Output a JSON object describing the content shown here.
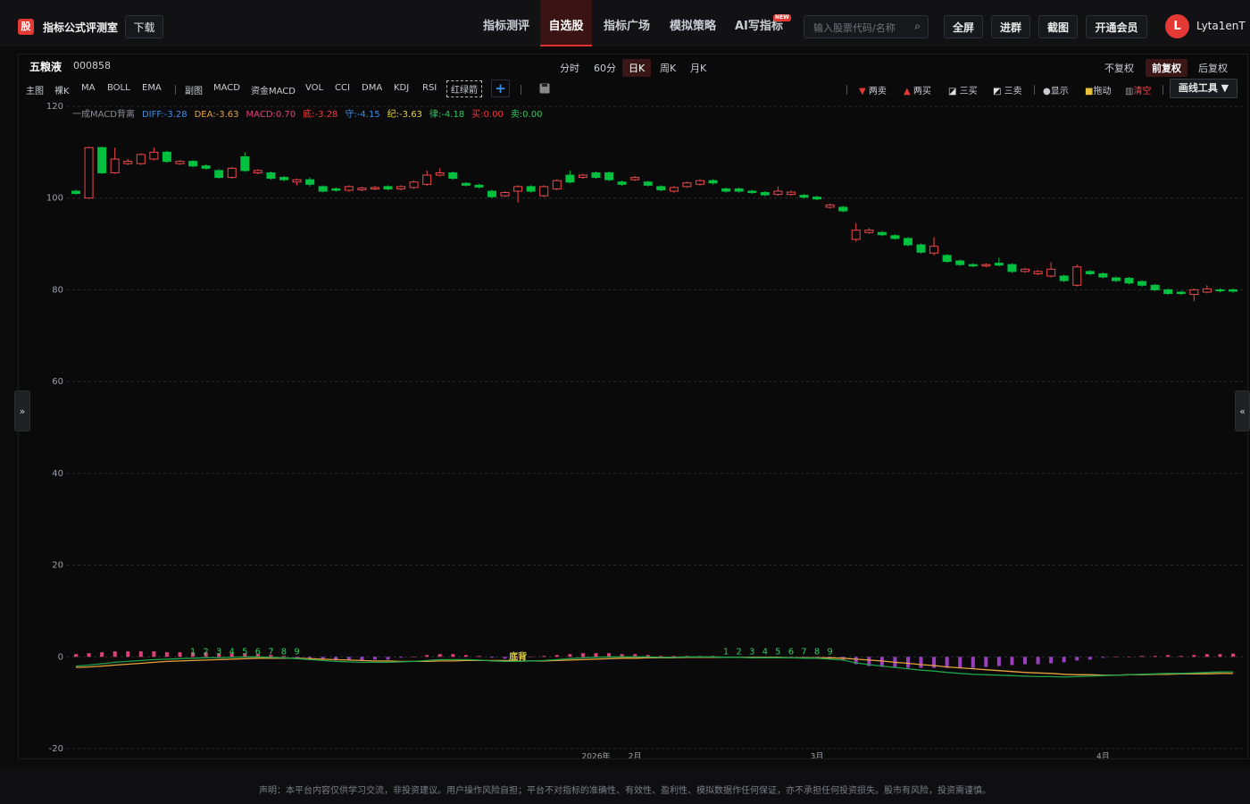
{
  "header": {
    "logo": "股",
    "app_name": "指标公式评测室",
    "download": "下载",
    "nav": [
      "指标测评",
      "自选股",
      "指标广场",
      "模拟策略",
      "AI写指标"
    ],
    "nav_active": 1,
    "new_badge": "NEW",
    "search_placeholder": "输入股票代码/名称",
    "search_icon": "⌕",
    "buttons": [
      "全屏",
      "进群",
      "截图",
      "开通会员"
    ],
    "avatar": "L",
    "username": "Lyta1enT"
  },
  "stock": {
    "name": "五粮液",
    "code": "000858"
  },
  "periods": [
    "分时",
    "60分",
    "日K",
    "周K",
    "月K"
  ],
  "period_active": 2,
  "adjust": [
    "不复权",
    "前复权",
    "后复权"
  ],
  "adjust_active": 1,
  "indicators": [
    "主图",
    "裸K",
    "MA",
    "BOLL",
    "EMA",
    "副图",
    "MACD",
    "资金MACD",
    "VOL",
    "CCI",
    "DMA",
    "KDJ",
    "RSI",
    "红绿箭"
  ],
  "add_button": "+",
  "tools": [
    "两卖",
    "两买",
    "三买",
    "三卖",
    "显示",
    "拖动",
    "清空"
  ],
  "draw_tools": "画线工具 ▼",
  "left_toggle": "»",
  "right_toggle": "«",
  "footer": "声明：本平台内容仅供学习交流，非投资建议。用户操作风险自担；平台不对指标的准确性、有效性、盈利性、模拟数据作任何保证，亦不承担任何投资损失。股市有风险，投资需谨慎。",
  "chart_data": {
    "type": "candlestick",
    "legend": [
      {
        "text": "一成MACD背离",
        "color": "#8a8f98"
      },
      {
        "text": "DIFF:-3.28",
        "color": "#3a8ee6"
      },
      {
        "text": "DEA:-3.63",
        "color": "#e6a23c"
      },
      {
        "text": "MACD:0.70",
        "color": "#e0407a"
      },
      {
        "text": "底:-3.28",
        "color": "#f03a3a"
      },
      {
        "text": "守:-4.15",
        "color": "#3a8ee6"
      },
      {
        "text": "纪:-3.63",
        "color": "#e6d23c"
      },
      {
        "text": "律:-4.18",
        "color": "#2ec95c"
      },
      {
        "text": "买:0.00",
        "color": "#f03a3a"
      },
      {
        "text": "卖:0.00",
        "color": "#2ec95c"
      }
    ],
    "up_color": "#f04848",
    "down_color": "#00c040",
    "ylim": [
      -20,
      120
    ],
    "yticks": [
      -20,
      0,
      20,
      40,
      60,
      80,
      100,
      120
    ],
    "grid": true,
    "open": [
      101.5,
      100,
      111,
      105.5,
      107.5,
      107.5,
      108.5,
      110,
      107.5,
      108,
      107,
      106,
      104.5,
      109,
      105.5,
      105.5,
      104.5,
      103.5,
      104,
      102.5,
      102,
      101.7,
      101.8,
      102,
      102.5,
      102,
      102.3,
      103,
      105,
      105.5,
      103.2,
      102.8,
      101.5,
      100.5,
      101.5,
      102.5,
      100.5,
      102,
      105,
      104.5,
      105.5,
      105.5,
      103.5,
      104,
      103.5,
      102.5,
      101.5,
      102.5,
      103,
      103.8,
      102,
      102,
      101.5,
      101.2,
      100.8,
      100.8,
      100.6,
      100.2,
      98,
      98,
      91,
      92.5,
      92.5,
      91.8,
      91.2,
      89.8,
      88,
      87.5,
      86.3,
      85.5,
      85.2,
      85.8,
      85.5,
      84,
      83.5,
      83,
      83,
      81,
      84,
      83.5,
      82.6,
      82.5,
      81.8,
      81,
      80,
      79.5,
      79,
      79.5,
      80,
      80
    ],
    "high": [
      101.8,
      111.2,
      111.2,
      111,
      108.5,
      109.8,
      111,
      110.3,
      108.3,
      108.3,
      107.3,
      106.3,
      106.8,
      110,
      106.3,
      105.8,
      104.8,
      104.3,
      104.5,
      102.8,
      102.3,
      102.8,
      102.5,
      102.6,
      102.8,
      102.8,
      103.8,
      106,
      106.5,
      105.8,
      103.5,
      103.1,
      101.8,
      101.5,
      102.8,
      102.8,
      102.8,
      104.1,
      106,
      105.3,
      105.8,
      105.8,
      103.8,
      104.8,
      103.8,
      102.8,
      102.6,
      103.6,
      104.1,
      104.1,
      102.3,
      102.3,
      101.8,
      101.5,
      102.5,
      101.6,
      100.9,
      100.5,
      98.8,
      98.3,
      94.5,
      93.5,
      92.8,
      92.1,
      91.5,
      90.1,
      91.5,
      87.8,
      86.6,
      85.8,
      85.8,
      87,
      85.8,
      84.8,
      84.3,
      86,
      83.3,
      85.5,
      84.3,
      83.8,
      82.9,
      82.8,
      82.1,
      81.3,
      80.3,
      79.8,
      80.3,
      81,
      80.3,
      80.3
    ],
    "low": [
      100.7,
      99.8,
      105.3,
      105.3,
      107.2,
      107.2,
      108.2,
      107.7,
      107.2,
      106.7,
      106.2,
      104.2,
      104.2,
      105.7,
      105.2,
      104,
      103.7,
      102.8,
      102.5,
      101.2,
      101.4,
      101.4,
      101.5,
      101.7,
      101.7,
      101.7,
      102,
      102.7,
      104.7,
      104,
      102.5,
      102.1,
      100,
      100.2,
      99,
      101.2,
      100.2,
      101.7,
      103.2,
      104.2,
      104.2,
      103.7,
      102.7,
      103.7,
      102.5,
      101.5,
      101.2,
      102.2,
      102.7,
      103,
      101.2,
      101.2,
      100.9,
      100.4,
      100.5,
      100.5,
      99.9,
      99.5,
      97.7,
      96.9,
      90.5,
      92.2,
      91.7,
      90.9,
      89.5,
      87.9,
      87.5,
      85.9,
      85.2,
      84.9,
      84.9,
      85.1,
      83.7,
      83.7,
      83.2,
      82.7,
      81.7,
      80.7,
      83.2,
      82.5,
      81.7,
      81.2,
      80.7,
      79.7,
      78.9,
      78.9,
      77.5,
      79.2,
      79.5,
      79.4
    ],
    "close": [
      101,
      111,
      105.5,
      108.5,
      108,
      109.5,
      110,
      108,
      108,
      107,
      106.5,
      104.5,
      106.5,
      106,
      106,
      104.3,
      104,
      104,
      103,
      101.5,
      101.7,
      102.5,
      102.2,
      102.3,
      102,
      102.5,
      103.5,
      105,
      105.5,
      104.3,
      102.8,
      102.4,
      100.3,
      101.2,
      102.5,
      101.5,
      102.5,
      103.8,
      103.5,
      105,
      104.5,
      104,
      103,
      104.5,
      102.8,
      101.8,
      102.3,
      103.3,
      103.8,
      103.3,
      101.5,
      101.5,
      101.2,
      100.7,
      101.5,
      101.3,
      100.2,
      99.8,
      98.5,
      97.2,
      93,
      93,
      92,
      91.2,
      89.8,
      88.2,
      89.5,
      86.2,
      85.5,
      85.2,
      85.5,
      85.4,
      84,
      84.5,
      84,
      84.5,
      82,
      85,
      83.5,
      82.8,
      82,
      81.5,
      81,
      80,
      79.2,
      79.2,
      80,
      80.2,
      79.8,
      79.7
    ],
    "diff": [
      -2.0,
      -1.8,
      -1.5,
      -1.2,
      -1.0,
      -0.8,
      -0.6,
      -0.5,
      -0.4,
      -0.3,
      -0.2,
      -0.2,
      -0.1,
      0,
      0,
      -0.1,
      -0.2,
      -0.4,
      -0.6,
      -0.8,
      -1.0,
      -1.1,
      -1.2,
      -1.2,
      -1.2,
      -1.1,
      -1.0,
      -0.8,
      -0.6,
      -0.6,
      -0.6,
      -0.7,
      -0.9,
      -1.0,
      -1.0,
      -0.9,
      -0.8,
      -0.6,
      -0.4,
      -0.2,
      -0.1,
      0,
      0,
      0,
      0,
      -0.1,
      -0.1,
      0,
      0,
      0,
      -0.1,
      -0.1,
      -0.2,
      -0.2,
      -0.2,
      -0.2,
      -0.3,
      -0.3,
      -0.5,
      -0.7,
      -1.3,
      -1.7,
      -2.0,
      -2.3,
      -2.6,
      -2.9,
      -3.1,
      -3.4,
      -3.6,
      -3.8,
      -3.9,
      -4.0,
      -4.1,
      -4.2,
      -4.3,
      -4.3,
      -4.4,
      -4.3,
      -4.2,
      -4.1,
      -4.0,
      -3.9,
      -3.8,
      -3.7,
      -3.6,
      -3.6,
      -3.5,
      -3.4,
      -3.3,
      -3.28
    ],
    "dea": [
      -2.3,
      -2.2,
      -2.0,
      -1.8,
      -1.6,
      -1.4,
      -1.2,
      -1.0,
      -0.9,
      -0.8,
      -0.7,
      -0.6,
      -0.5,
      -0.4,
      -0.3,
      -0.3,
      -0.3,
      -0.3,
      -0.4,
      -0.5,
      -0.6,
      -0.7,
      -0.8,
      -0.9,
      -0.9,
      -1.0,
      -1.0,
      -1.0,
      -0.9,
      -0.9,
      -0.8,
      -0.8,
      -0.8,
      -0.8,
      -0.9,
      -0.9,
      -0.9,
      -0.8,
      -0.7,
      -0.6,
      -0.5,
      -0.4,
      -0.3,
      -0.3,
      -0.2,
      -0.2,
      -0.2,
      -0.1,
      -0.1,
      -0.1,
      -0.1,
      -0.1,
      -0.1,
      -0.1,
      -0.1,
      -0.2,
      -0.2,
      -0.2,
      -0.2,
      -0.3,
      -0.5,
      -0.7,
      -0.9,
      -1.2,
      -1.4,
      -1.7,
      -1.9,
      -2.2,
      -2.4,
      -2.6,
      -2.8,
      -3.0,
      -3.2,
      -3.4,
      -3.5,
      -3.6,
      -3.8,
      -3.9,
      -3.9,
      -4.0,
      -4.0,
      -3.9,
      -3.9,
      -3.8,
      -3.8,
      -3.7,
      -3.7,
      -3.7,
      -3.6,
      -3.63
    ],
    "macd": [
      0.6,
      0.8,
      1.0,
      1.2,
      1.2,
      1.2,
      1.2,
      1.0,
      1.0,
      1.0,
      1.0,
      0.8,
      0.8,
      0.8,
      0.6,
      0.4,
      0.2,
      -0.2,
      -0.4,
      -0.6,
      -0.8,
      -0.8,
      -0.8,
      -0.6,
      -0.6,
      -0.2,
      0,
      0.4,
      0.6,
      0.6,
      0.4,
      0.2,
      -0.2,
      -0.4,
      -0.2,
      0,
      0.2,
      0.4,
      0.6,
      0.8,
      0.8,
      0.8,
      0.6,
      0.6,
      0.4,
      0.2,
      0.2,
      0.2,
      0.2,
      0.2,
      0,
      0,
      -0.2,
      -0.2,
      -0.2,
      0,
      -0.2,
      -0.2,
      -0.6,
      -0.8,
      -1.6,
      -2.0,
      -2.2,
      -2.2,
      -2.4,
      -2.4,
      -2.4,
      -2.4,
      -2.4,
      -2.4,
      -2.2,
      -2.0,
      -1.8,
      -1.6,
      -1.6,
      -1.4,
      -1.2,
      -0.8,
      -0.6,
      -0.2,
      0,
      0,
      0.2,
      0.2,
      0.4,
      0.2,
      0.4,
      0.6,
      0.6,
      0.7
    ],
    "diff_color": "#1fa34a",
    "dea_color": "#e6a23c",
    "macd_up_color": "#e0407a",
    "macd_down_color": "#9a3fbf",
    "count_runs": [
      {
        "start": 9,
        "labels": [
          "1",
          "2",
          "3",
          "4",
          "5",
          "6",
          "7",
          "8",
          "9"
        ]
      },
      {
        "start": 50,
        "labels": [
          "1",
          "2",
          "3",
          "4",
          "5",
          "6",
          "7",
          "8",
          "9"
        ]
      }
    ],
    "annotations": [
      {
        "text": "底背",
        "index": 34
      }
    ],
    "x_labels": [
      {
        "label": "2026年",
        "index": 40
      },
      {
        "label": "2月",
        "index": 43
      },
      {
        "label": "3月",
        "index": 57
      },
      {
        "label": "4月",
        "index": 79
      }
    ]
  }
}
